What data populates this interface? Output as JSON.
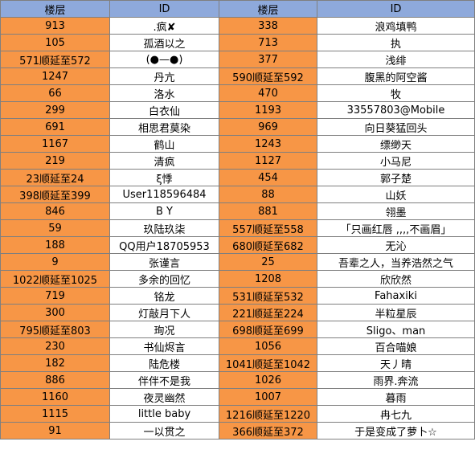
{
  "header": {
    "floor_label": "楼层",
    "id_label": "ID"
  },
  "rows": [
    {
      "floor1": "913",
      "id1": ".疯✘",
      "floor2": "338",
      "id2": "浪鸡填鸭"
    },
    {
      "floor1": "105",
      "id1": "孤酒以之",
      "floor2": "713",
      "id2": "执"
    },
    {
      "floor1": "571顺延至572",
      "id1": "(●—●)",
      "floor2": "377",
      "id2": "浅绯"
    },
    {
      "floor1": "1247",
      "id1": "丹亢",
      "floor2": "590顺延至592",
      "id2": "腹黑的阿空酱"
    },
    {
      "floor1": "66",
      "id1": "洛水",
      "floor2": "470",
      "id2": "牧"
    },
    {
      "floor1": "299",
      "id1": "白衣仙",
      "floor2": "1193",
      "id2": "33557803@Mobile"
    },
    {
      "floor1": "691",
      "id1": "相思君莫染",
      "floor2": "969",
      "id2": "向日葵猛回头"
    },
    {
      "floor1": "1167",
      "id1": "鹤山",
      "floor2": "1243",
      "id2": "缥缈天"
    },
    {
      "floor1": "219",
      "id1": "清疯",
      "floor2": "1127",
      "id2": "小马尼"
    },
    {
      "floor1": "23顺延至24",
      "id1": "ξ悸",
      "floor2": "454",
      "id2": "郭子楚"
    },
    {
      "floor1": "398顺延至399",
      "id1": "User118596484",
      "floor2": "88",
      "id2": "山妖"
    },
    {
      "floor1": "846",
      "id1": "B Y",
      "floor2": "881",
      "id2": "翎墨"
    },
    {
      "floor1": "59",
      "id1": "玖陆玖柒",
      "floor2": "557顺延至558",
      "id2": "「只画红唇 ,,,,不画眉」"
    },
    {
      "floor1": "188",
      "id1": "QQ用户18705953",
      "floor2": "680顺延至682",
      "id2": "无沁"
    },
    {
      "floor1": "9",
      "id1": "张谨言",
      "floor2": "25",
      "id2": "吾辈之人，当养浩然之气"
    },
    {
      "floor1": "1022顺延至1025",
      "id1": "多余的回忆",
      "floor2": "1208",
      "id2": "欣欣然"
    },
    {
      "floor1": "719",
      "id1": "铭龙",
      "floor2": "531顺延至532",
      "id2": "Fahaxiki"
    },
    {
      "floor1": "300",
      "id1": "灯敲月下人",
      "floor2": "221顺延至224",
      "id2": "半粒星辰"
    },
    {
      "floor1": "795顺延至803",
      "id1": "珣况",
      "floor2": "698顺延至699",
      "id2": "Sligo、man"
    },
    {
      "floor1": "230",
      "id1": "书仙烬言",
      "floor2": "1056",
      "id2": "百合喵娘"
    },
    {
      "floor1": "182",
      "id1": "陆危楼",
      "floor2": "1041顺延至1042",
      "id2": "天丿晴"
    },
    {
      "floor1": "886",
      "id1": "伴伴不是我",
      "floor2": "1026",
      "id2": "雨界.奔流"
    },
    {
      "floor1": "1160",
      "id1": "夜灵幽然",
      "floor2": "1007",
      "id2": "暮雨"
    },
    {
      "floor1": "1115",
      "id1": "little baby",
      "floor2": "1216顺延至1220",
      "id2": "冉七九"
    },
    {
      "floor1": "91",
      "id1": "一以贯之",
      "floor2": "366顺延至372",
      "id2": "于是变成了萝卜☆"
    }
  ]
}
